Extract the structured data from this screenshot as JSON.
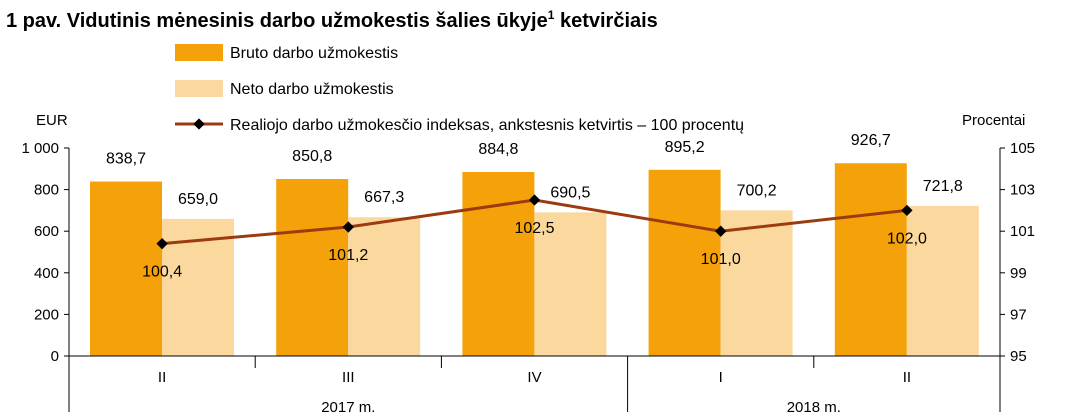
{
  "chart_data": {
    "type": "bar",
    "title": {
      "main": "1 pav. Vidutinis mėnesinis darbo užmokestis šalies ūkyje",
      "superscript": "1",
      "suffix": " ketvirčiais"
    },
    "categories": [
      "II",
      "III",
      "IV",
      "I",
      "II"
    ],
    "year_groups": [
      {
        "label": "2017 m.",
        "categories": [
          0,
          1,
          2
        ]
      },
      {
        "label": "2018 m.",
        "categories": [
          3,
          4
        ]
      }
    ],
    "left_axis": {
      "label": "EUR",
      "ylim": [
        0,
        1000
      ],
      "ticks": [
        0,
        200,
        400,
        600,
        800,
        1000
      ],
      "tick_labels": [
        "0",
        "200",
        "400",
        "600",
        "800",
        "1 000"
      ]
    },
    "right_axis": {
      "label": "Procentai",
      "ylim": [
        95,
        105
      ],
      "ticks": [
        95,
        97,
        99,
        101,
        103,
        105
      ],
      "tick_labels": [
        "95",
        "97",
        "99",
        "101",
        "103",
        "105"
      ]
    },
    "series": [
      {
        "name": "Bruto darbo užmokestis",
        "kind": "bar",
        "axis": "left",
        "color": "#F5A20A",
        "values": [
          838.7,
          850.8,
          884.8,
          895.2,
          926.7
        ],
        "labels": [
          "838,7",
          "850,8",
          "884,8",
          "895,2",
          "926,7"
        ]
      },
      {
        "name": "Neto darbo užmokestis",
        "kind": "bar",
        "axis": "left",
        "color": "#FBD99E",
        "values": [
          659.0,
          667.3,
          690.5,
          700.2,
          721.8
        ],
        "labels": [
          "659,0",
          "667,3",
          "690,5",
          "700,2",
          "721,8"
        ]
      },
      {
        "name": "Realiojo darbo užmokesčio indeksas, ankstesnis ketvirtis – 100 procentų",
        "kind": "line",
        "axis": "right",
        "color": "#9C3B0F",
        "marker_color": "#000000",
        "values": [
          100.4,
          101.2,
          102.5,
          101.0,
          102.0
        ],
        "labels": [
          "100,4",
          "101,2",
          "102,5",
          "101,0",
          "102,0"
        ]
      }
    ],
    "grid": false,
    "legend_position": "top-center"
  }
}
